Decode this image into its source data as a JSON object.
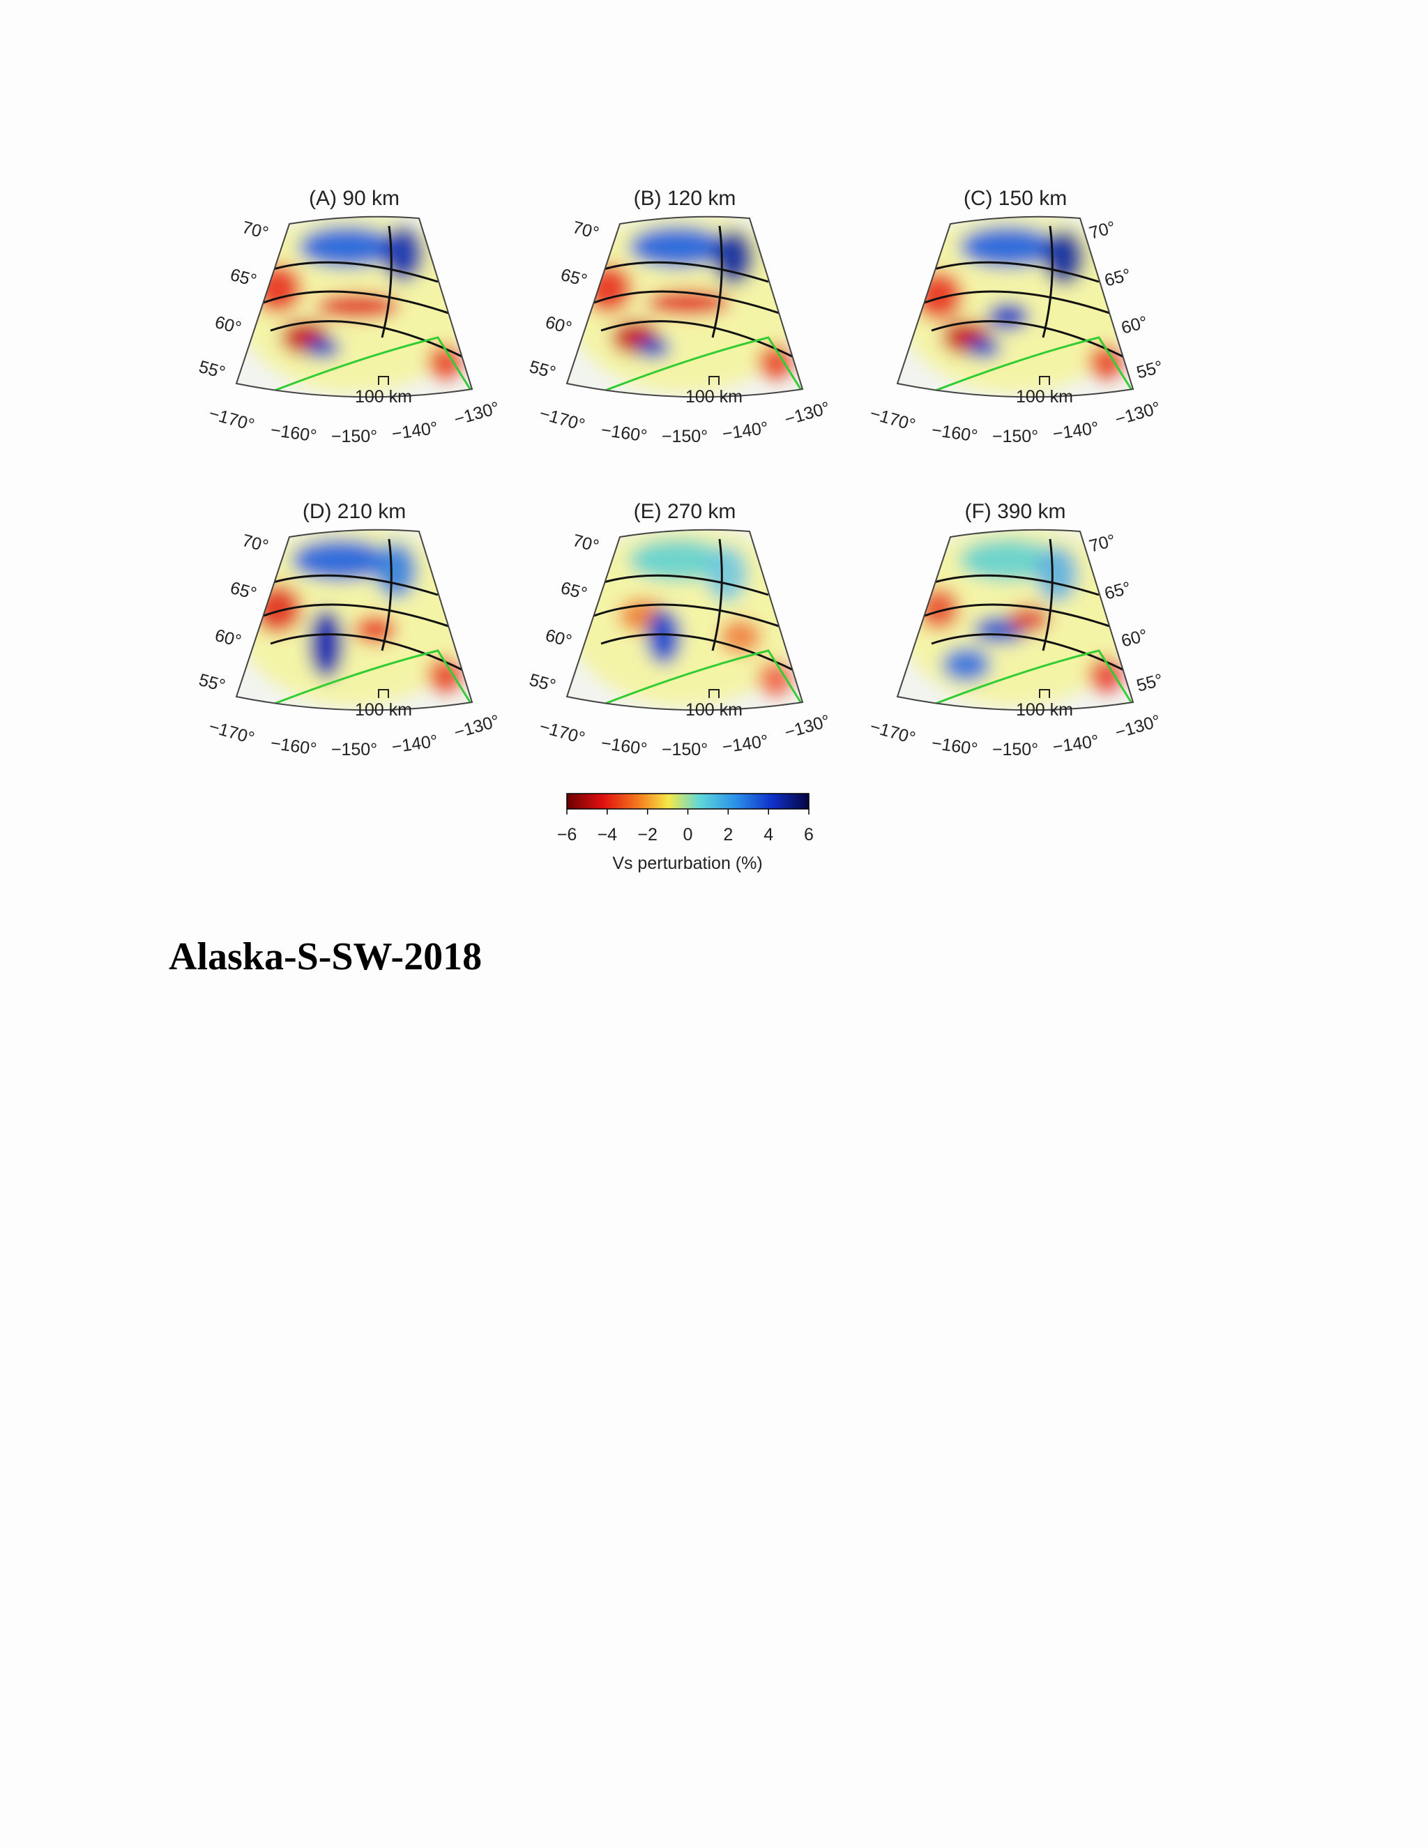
{
  "figure": {
    "panels": [
      {
        "title": "(A) 90 km",
        "lat_labels": [
          "70°",
          "65°",
          "60°",
          "55°"
        ],
        "lon_labels": [
          "−170°",
          "−160°",
          "−150°",
          "−140°",
          "−130°"
        ],
        "scale_label": "100 km"
      },
      {
        "title": "(B) 120 km",
        "lat_labels": [
          "70°",
          "65°",
          "60°",
          "55°"
        ],
        "lon_labels": [
          "−170°",
          "−160°",
          "−150°",
          "−140°",
          "−130°"
        ],
        "scale_label": "100 km"
      },
      {
        "title": "(C) 150 km",
        "lat_labels": [
          "70°",
          "65°",
          "60°",
          "55°"
        ],
        "lon_labels": [
          "−170°",
          "−160°",
          "−150°",
          "−140°",
          "−130°"
        ],
        "scale_label": "100 km"
      },
      {
        "title": "(D) 210 km",
        "lat_labels": [
          "70°",
          "65°",
          "60°",
          "55°"
        ],
        "lon_labels": [
          "−170°",
          "−160°",
          "−150°",
          "−140°",
          "−130°"
        ],
        "scale_label": "100 km"
      },
      {
        "title": "(E) 270 km",
        "lat_labels": [
          "70°",
          "65°",
          "60°",
          "55°"
        ],
        "lon_labels": [
          "−170°",
          "−160°",
          "−150°",
          "−140°",
          "−130°"
        ],
        "scale_label": "100 km"
      },
      {
        "title": "(F) 390 km",
        "lat_labels": [
          "70°",
          "65°",
          "60°",
          "55°"
        ],
        "lon_labels": [
          "−170°",
          "−160°",
          "−150°",
          "−140°",
          "−130°"
        ],
        "scale_label": "100 km"
      }
    ],
    "colorbar": {
      "ticks": [
        "−6",
        "−4",
        "−2",
        "0",
        "2",
        "4",
        "6"
      ],
      "label": "Vs perturbation (%)"
    }
  },
  "heading": "Alaska-S-SW-2018"
}
